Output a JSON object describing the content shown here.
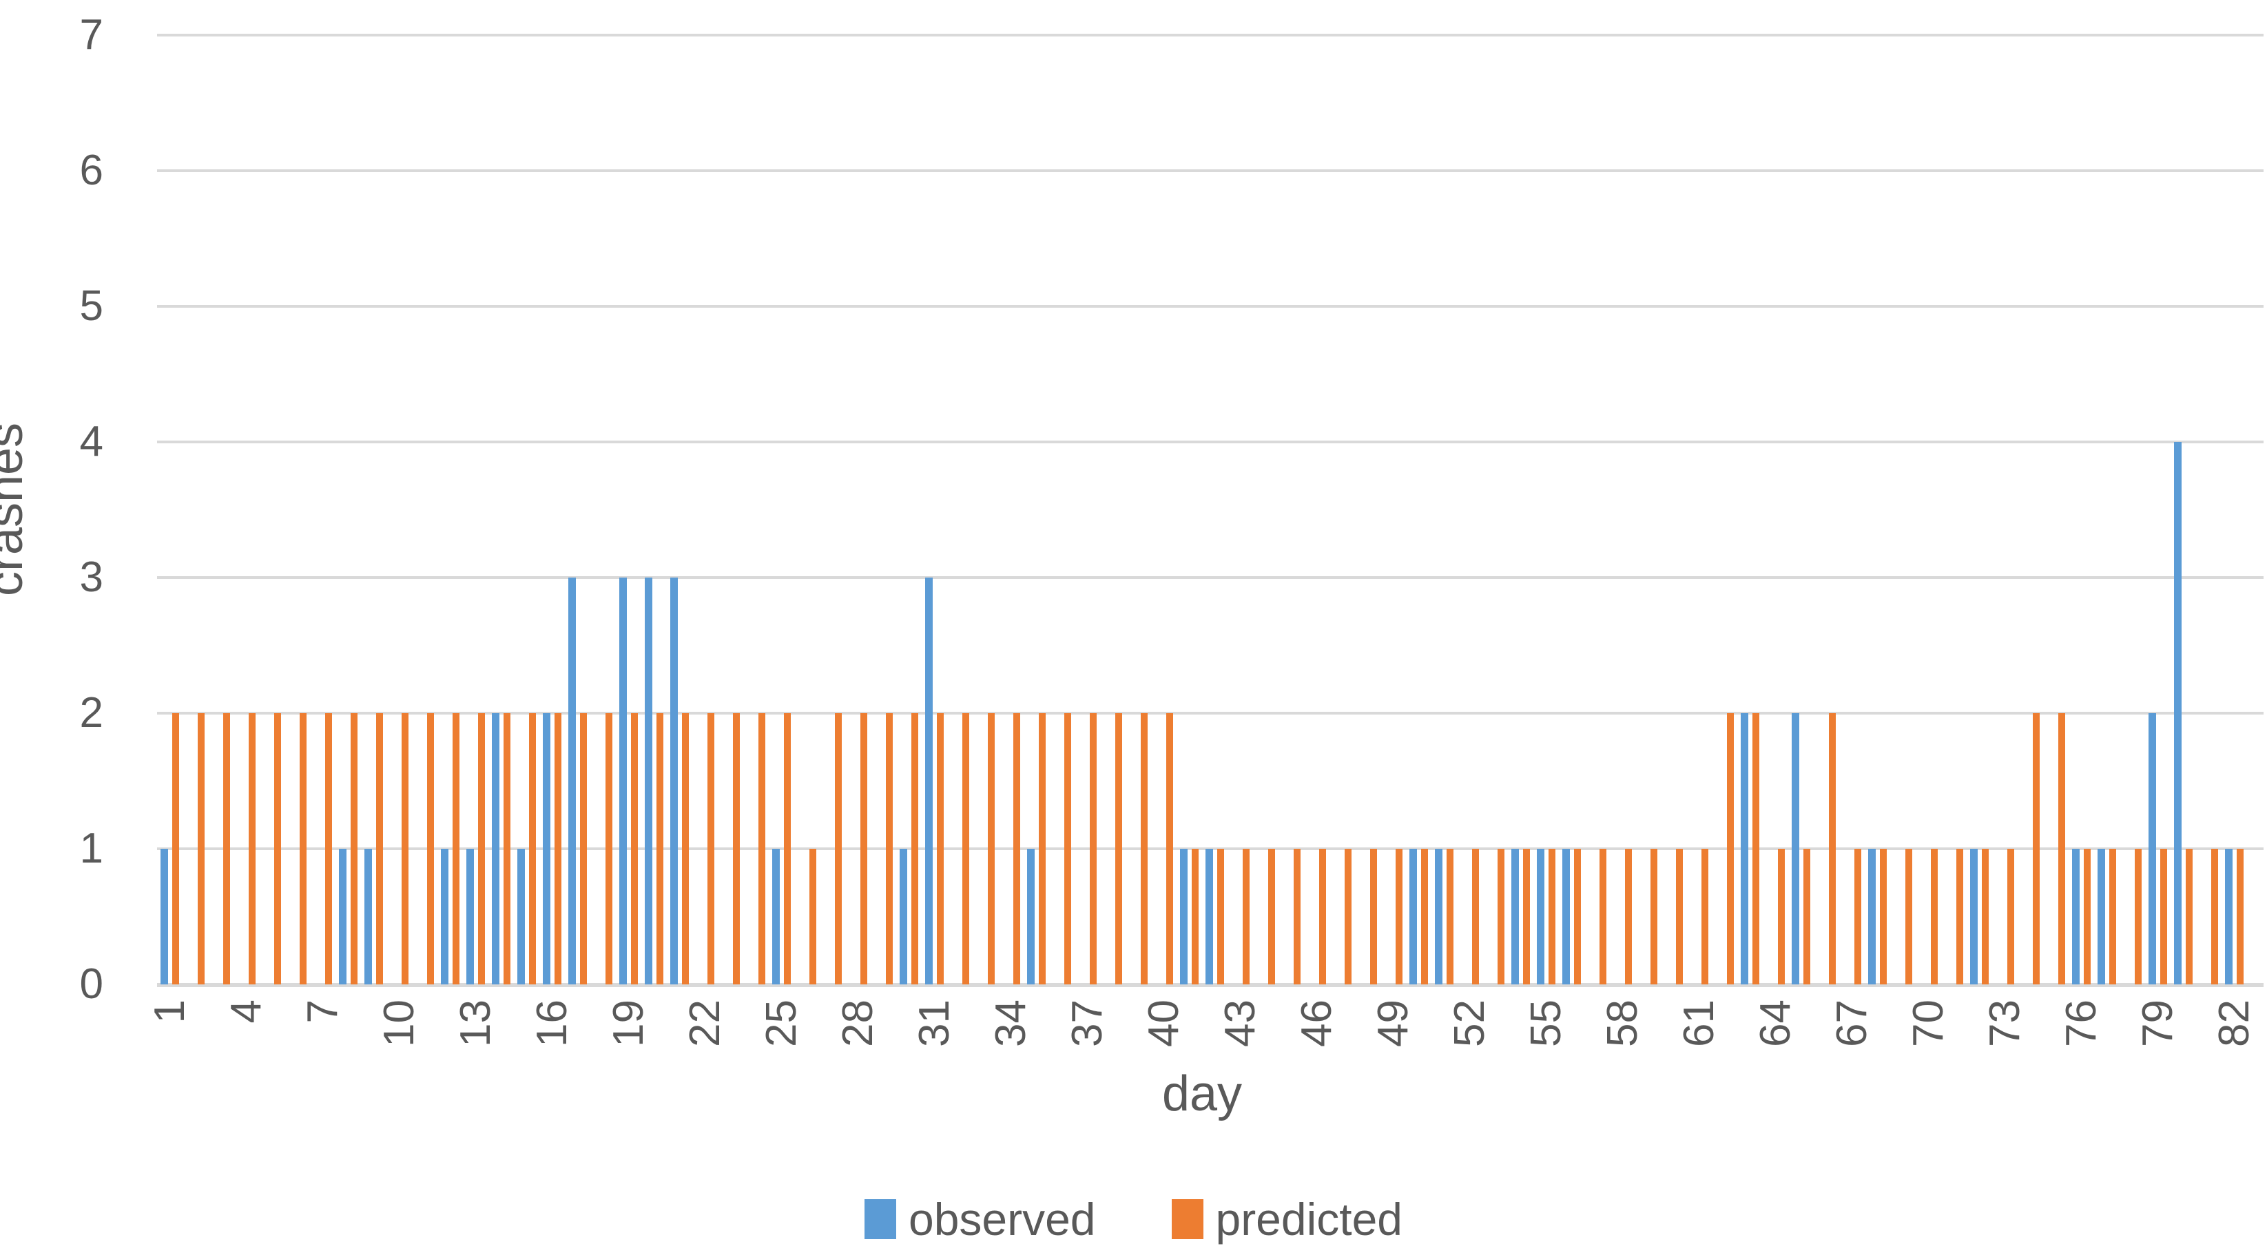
{
  "chart_data": {
    "type": "bar",
    "title": "",
    "xlabel": "day",
    "ylabel": "crashes",
    "ylim": [
      0,
      7
    ],
    "yticks": [
      0,
      1,
      2,
      3,
      4,
      5,
      6,
      7
    ],
    "xticks": [
      1,
      4,
      7,
      10,
      13,
      16,
      19,
      22,
      25,
      28,
      31,
      34,
      37,
      40,
      43,
      46,
      49,
      52,
      55,
      58,
      61,
      64,
      67,
      70,
      73,
      76,
      79,
      82
    ],
    "categories": "days 1-82",
    "n_days": 82,
    "grid": "horizontal",
    "legend_position": "bottom",
    "series": [
      {
        "name": "observed",
        "color": "#5B9BD5",
        "values": [
          1,
          0,
          0,
          0,
          0,
          0,
          0,
          1,
          1,
          0,
          0,
          1,
          1,
          2,
          1,
          2,
          3,
          0,
          3,
          3,
          3,
          0,
          0,
          0,
          1,
          0,
          0,
          0,
          0,
          1,
          3,
          0,
          0,
          0,
          1,
          0,
          0,
          0,
          0,
          0,
          1,
          1,
          0,
          0,
          0,
          0,
          0,
          0,
          0,
          1,
          1,
          0,
          0,
          1,
          1,
          1,
          0,
          0,
          0,
          0,
          0,
          0,
          2,
          0,
          2,
          0,
          0,
          1,
          0,
          0,
          0,
          1,
          0,
          0,
          0,
          1,
          1,
          0,
          2,
          4,
          0,
          1
        ]
      },
      {
        "name": "predicted",
        "color": "#ED7D31",
        "values": [
          2,
          2,
          2,
          2,
          2,
          2,
          2,
          2,
          2,
          2,
          2,
          2,
          2,
          2,
          2,
          2,
          2,
          2,
          2,
          2,
          2,
          2,
          2,
          2,
          2,
          1,
          2,
          2,
          2,
          2,
          2,
          2,
          2,
          2,
          2,
          2,
          2,
          2,
          2,
          2,
          1,
          1,
          1,
          1,
          1,
          1,
          1,
          1,
          1,
          1,
          1,
          1,
          1,
          1,
          1,
          1,
          1,
          1,
          1,
          1,
          1,
          2,
          2,
          1,
          1,
          2,
          1,
          1,
          1,
          1,
          1,
          1,
          1,
          2,
          2,
          1,
          1,
          1,
          1,
          1,
          1,
          1
        ]
      }
    ]
  },
  "colors": {
    "gridline": "#D9D9D9",
    "axis_text": "#595959",
    "background": "#FFFFFF"
  }
}
